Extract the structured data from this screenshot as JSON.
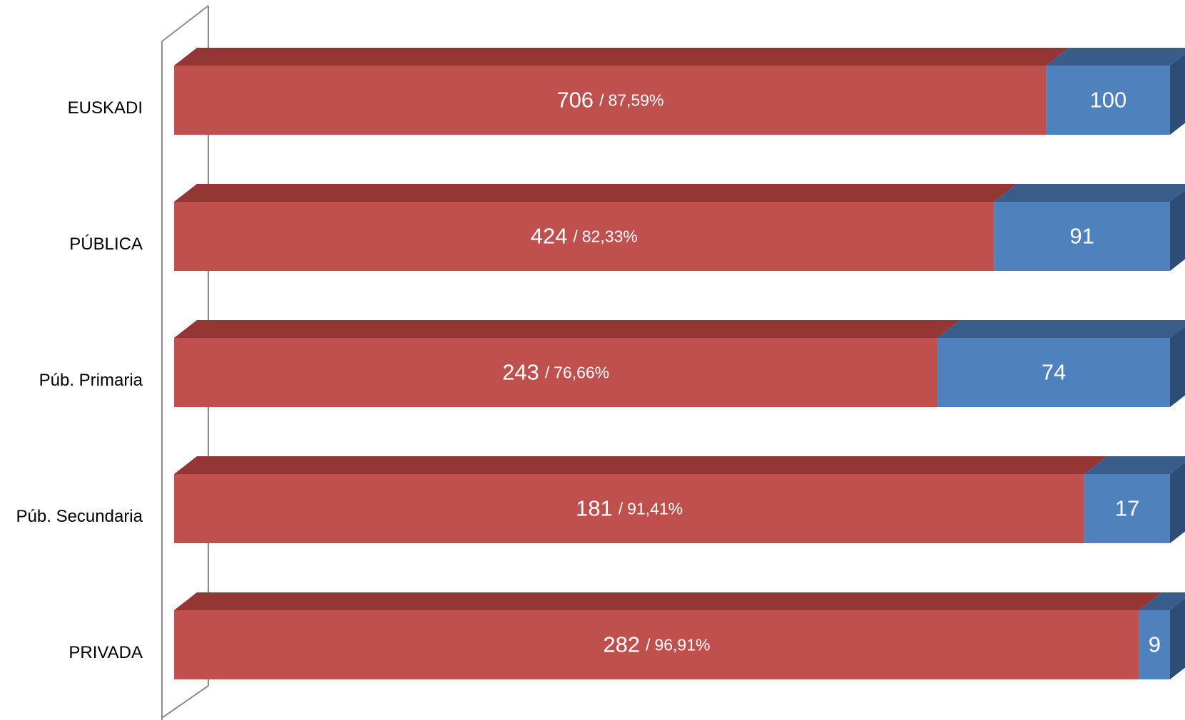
{
  "chart_data": {
    "type": "bar3d_stacked_percent",
    "categories": [
      "EUSKADI",
      "PÚBLICA",
      "Púb. Primaria",
      "Púb. Secundaria",
      "PRIVADA"
    ],
    "label_separator": "/",
    "series": [
      {
        "color": "#c0504d",
        "top_color": "#943634",
        "values": [
          706,
          424,
          243,
          181,
          282
        ],
        "shares": [
          87.59,
          82.33,
          76.66,
          91.41,
          96.91
        ],
        "share_labels": [
          "87,59%",
          "82,33%",
          "76,66%",
          "91,41%",
          "96,91%"
        ]
      },
      {
        "color": "#4f81bd",
        "top_color": "#385d8a",
        "side_color": "#2c4d75",
        "values": [
          100,
          91,
          74,
          17,
          9
        ]
      }
    ]
  }
}
